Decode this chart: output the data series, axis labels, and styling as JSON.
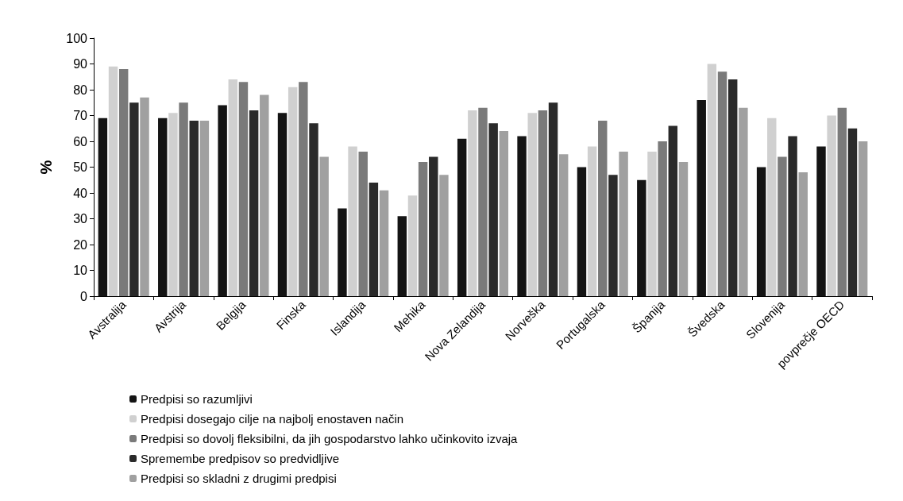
{
  "chart_data": {
    "type": "bar",
    "ylabel": "%",
    "categories": [
      "Avstralija",
      "Avstrija",
      "Belgija",
      "Finska",
      "Islandija",
      "Mehika",
      "Nova Zelandija",
      "Norveška",
      "Portugalska",
      "Španija",
      "Švedska",
      "Slovenija",
      "povprečje OECD"
    ],
    "series": [
      {
        "name": "Predpisi so razumljivi",
        "color": "#141414",
        "values": [
          69,
          69,
          74,
          71,
          34,
          31,
          61,
          62,
          50,
          45,
          76,
          50,
          58
        ]
      },
      {
        "name": "Predpisi dosegajo cilje na najbolj enostaven način",
        "color": "#d0d0d0",
        "values": [
          89,
          71,
          84,
          81,
          58,
          39,
          72,
          71,
          58,
          56,
          90,
          69,
          70
        ]
      },
      {
        "name": "Predpisi so dovolj fleksibilni, da jih gospodarstvo lahko učinkovito izvaja",
        "color": "#7a7a7a",
        "values": [
          88,
          75,
          83,
          83,
          56,
          52,
          73,
          72,
          68,
          60,
          87,
          54,
          73
        ]
      },
      {
        "name": "Spremembe predpisov so predvidljive",
        "color": "#2a2a2a",
        "values": [
          75,
          68,
          72,
          67,
          44,
          54,
          67,
          75,
          47,
          66,
          84,
          62,
          65
        ]
      },
      {
        "name": "Predpisi so skladni z drugimi predpisi",
        "color": "#a0a0a0",
        "values": [
          77,
          68,
          78,
          54,
          41,
          47,
          64,
          55,
          56,
          52,
          73,
          48,
          60
        ]
      }
    ],
    "ylim": [
      0,
      100
    ],
    "yticks": [
      0,
      10,
      20,
      30,
      40,
      50,
      60,
      70,
      80,
      90,
      100
    ],
    "grid": false,
    "legend": "bottom"
  }
}
